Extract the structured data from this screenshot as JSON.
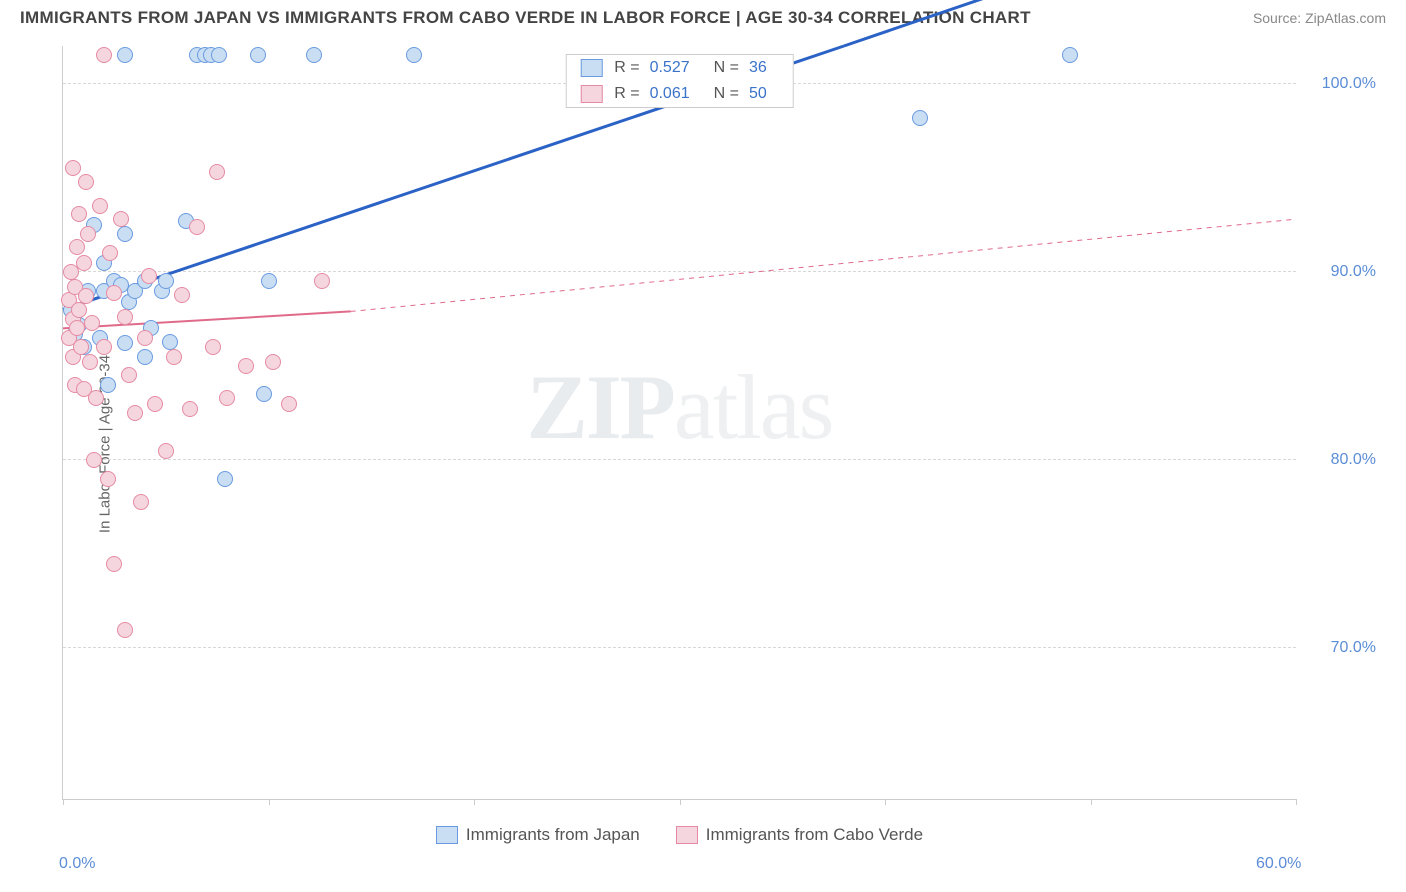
{
  "title": "IMMIGRANTS FROM JAPAN VS IMMIGRANTS FROM CABO VERDE IN LABOR FORCE | AGE 30-34 CORRELATION CHART",
  "source": "Source: ZipAtlas.com",
  "ylabel": "In Labor Force | Age 30-34",
  "watermark": {
    "p1": "ZIP",
    "p2": "atlas"
  },
  "chart": {
    "type": "scatter",
    "xlim": [
      0,
      60
    ],
    "ylim": [
      62,
      102
    ],
    "ytick_step": 10,
    "yticks": [
      70,
      80,
      90,
      100
    ],
    "ytick_labels": [
      "70.0%",
      "80.0%",
      "90.0%",
      "100.0%"
    ],
    "xticks": [
      0,
      10,
      20,
      30,
      40,
      50,
      60
    ],
    "xtick_labels_shown": {
      "0": "0.0%",
      "60": "60.0%"
    },
    "grid_color": "#d8d8d8",
    "axis_color": "#cccccc",
    "background_color": "#ffffff",
    "marker_radius": 8,
    "marker_stroke_width": 1.2,
    "series": [
      {
        "name": "Immigrants from Japan",
        "key": "japan",
        "fill": "#c9ddf3",
        "stroke": "#6a9be0",
        "r_value": "0.527",
        "n_value": "36",
        "trend": {
          "x1": 0,
          "y1": 88.0,
          "x2": 38,
          "y2": 102.0,
          "color": "#2b62c6",
          "width": 3,
          "dash": "none",
          "ext_x2": 60,
          "ext_y2": 110.2
        },
        "points": [
          [
            0.4,
            88.0
          ],
          [
            0.6,
            86.7
          ],
          [
            0.8,
            87.2
          ],
          [
            1.0,
            86.0
          ],
          [
            1.2,
            89.0
          ],
          [
            1.5,
            92.5
          ],
          [
            1.8,
            86.5
          ],
          [
            2.0,
            89.0
          ],
          [
            2.0,
            90.5
          ],
          [
            2.2,
            84.0
          ],
          [
            2.5,
            89.5
          ],
          [
            2.8,
            89.3
          ],
          [
            3.0,
            92.0
          ],
          [
            3.0,
            86.2
          ],
          [
            3.2,
            88.4
          ],
          [
            3.5,
            89.0
          ],
          [
            4.0,
            89.5
          ],
          [
            4.0,
            85.5
          ],
          [
            4.3,
            87.0
          ],
          [
            4.8,
            89.0
          ],
          [
            5.0,
            89.5
          ],
          [
            5.2,
            86.3
          ],
          [
            6.0,
            92.7
          ],
          [
            6.5,
            101.5
          ],
          [
            6.9,
            101.5
          ],
          [
            7.2,
            101.5
          ],
          [
            7.6,
            101.5
          ],
          [
            7.9,
            79.0
          ],
          [
            9.5,
            101.5
          ],
          [
            9.8,
            83.5
          ],
          [
            10.0,
            89.5
          ],
          [
            12.2,
            101.5
          ],
          [
            17.1,
            101.5
          ],
          [
            41.7,
            98.2
          ],
          [
            49.0,
            101.5
          ],
          [
            3.0,
            101.5
          ]
        ]
      },
      {
        "name": "Immigrants from Cabo Verde",
        "key": "cabo",
        "fill": "#f6d6de",
        "stroke": "#e48ba3",
        "r_value": "0.061",
        "n_value": "50",
        "trend": {
          "x1": 0,
          "y1": 87.0,
          "x2": 14,
          "y2": 87.9,
          "color": "#e06a8a",
          "width": 2,
          "dash": "none",
          "ext_x2": 60,
          "ext_y2": 92.8,
          "ext_dash": "5 5",
          "ext_width": 1
        },
        "points": [
          [
            0.3,
            88.5
          ],
          [
            0.3,
            86.5
          ],
          [
            0.4,
            90.0
          ],
          [
            0.5,
            87.5
          ],
          [
            0.5,
            85.5
          ],
          [
            0.6,
            89.2
          ],
          [
            0.6,
            84.0
          ],
          [
            0.7,
            91.3
          ],
          [
            0.7,
            87.0
          ],
          [
            0.8,
            93.1
          ],
          [
            0.8,
            88.0
          ],
          [
            0.9,
            86.0
          ],
          [
            1.0,
            90.5
          ],
          [
            1.0,
            83.8
          ],
          [
            1.1,
            88.7
          ],
          [
            1.2,
            92.0
          ],
          [
            1.3,
            85.2
          ],
          [
            1.4,
            87.3
          ],
          [
            1.5,
            80.0
          ],
          [
            1.6,
            83.3
          ],
          [
            1.8,
            93.5
          ],
          [
            2.0,
            86.0
          ],
          [
            2.0,
            101.5
          ],
          [
            2.2,
            79.0
          ],
          [
            2.5,
            88.9
          ],
          [
            2.5,
            74.5
          ],
          [
            2.8,
            92.8
          ],
          [
            3.0,
            87.6
          ],
          [
            3.0,
            71.0
          ],
          [
            3.2,
            84.5
          ],
          [
            3.5,
            82.5
          ],
          [
            3.8,
            77.8
          ],
          [
            4.0,
            86.5
          ],
          [
            4.2,
            89.8
          ],
          [
            4.5,
            83.0
          ],
          [
            5.0,
            80.5
          ],
          [
            5.4,
            85.5
          ],
          [
            5.8,
            88.8
          ],
          [
            6.2,
            82.7
          ],
          [
            6.5,
            92.4
          ],
          [
            7.3,
            86.0
          ],
          [
            7.5,
            95.3
          ],
          [
            8.0,
            83.3
          ],
          [
            8.9,
            85.0
          ],
          [
            10.2,
            85.2
          ],
          [
            11.0,
            83.0
          ],
          [
            12.6,
            89.5
          ],
          [
            0.5,
            95.5
          ],
          [
            1.1,
            94.8
          ],
          [
            2.3,
            91.0
          ]
        ]
      }
    ]
  },
  "legend_bottom": [
    {
      "label": "Immigrants from Japan",
      "fill": "#c9ddf3",
      "stroke": "#6a9be0"
    },
    {
      "label": "Immigrants from Cabo Verde",
      "fill": "#f6d6de",
      "stroke": "#e48ba3"
    }
  ]
}
